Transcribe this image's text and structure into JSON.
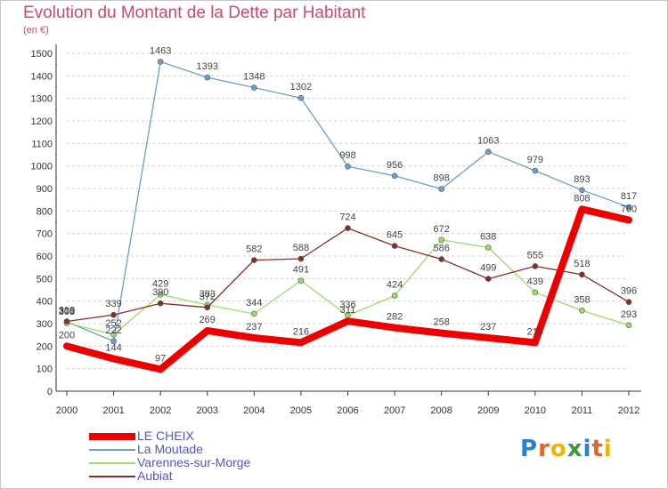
{
  "header": {
    "title": "Evolution du Montant de la Dette par Habitant",
    "unit": "(en €)"
  },
  "logo": {
    "letters": [
      "P",
      "r",
      "o",
      "x",
      "i",
      "t",
      "i"
    ],
    "colors": [
      "#2a7fd4",
      "#e8602c",
      "#f0b400",
      "#3a9a3a",
      "#2a7fd4",
      "#e8602c",
      "#f0b400"
    ]
  },
  "chart_data": {
    "type": "line",
    "title": "Evolution du Montant de la Dette par Habitant",
    "ylabel": "(en €)",
    "xlabel": "",
    "x": [
      "2000",
      "2001",
      "2002",
      "2003",
      "2004",
      "2005",
      "2006",
      "2007",
      "2008",
      "2009",
      "2010",
      "2011",
      "2012"
    ],
    "ylim": [
      0,
      1500
    ],
    "yticks": [
      0,
      100,
      200,
      300,
      400,
      500,
      600,
      700,
      800,
      900,
      1000,
      1100,
      1200,
      1300,
      1400,
      1500
    ],
    "grid": "horizontal dashed",
    "legend_position": "bottom-left",
    "series": [
      {
        "name": "LE CHEIX",
        "color": "#ee0000",
        "width": 8,
        "values": [
          200,
          144,
          97,
          269,
          237,
          216,
          311,
          282,
          258,
          237,
          216,
          808,
          760
        ]
      },
      {
        "name": "La Moutade",
        "color": "#6a9fd0",
        "width": 1.3,
        "values": [
          308,
          222,
          1463,
          1393,
          1348,
          1302,
          998,
          956,
          898,
          1063,
          979,
          893,
          817
        ]
      },
      {
        "name": "Varennes-sur-Morge",
        "color": "#99dd66",
        "width": 1.3,
        "values": [
          303,
          252,
          429,
          383,
          344,
          491,
          336,
          424,
          672,
          638,
          439,
          358,
          293
        ]
      },
      {
        "name": "Aubiat",
        "color": "#8b2c2c",
        "width": 1.3,
        "values": [
          310,
          339,
          390,
          372,
          582,
          588,
          724,
          645,
          586,
          499,
          555,
          518,
          396
        ]
      }
    ]
  }
}
